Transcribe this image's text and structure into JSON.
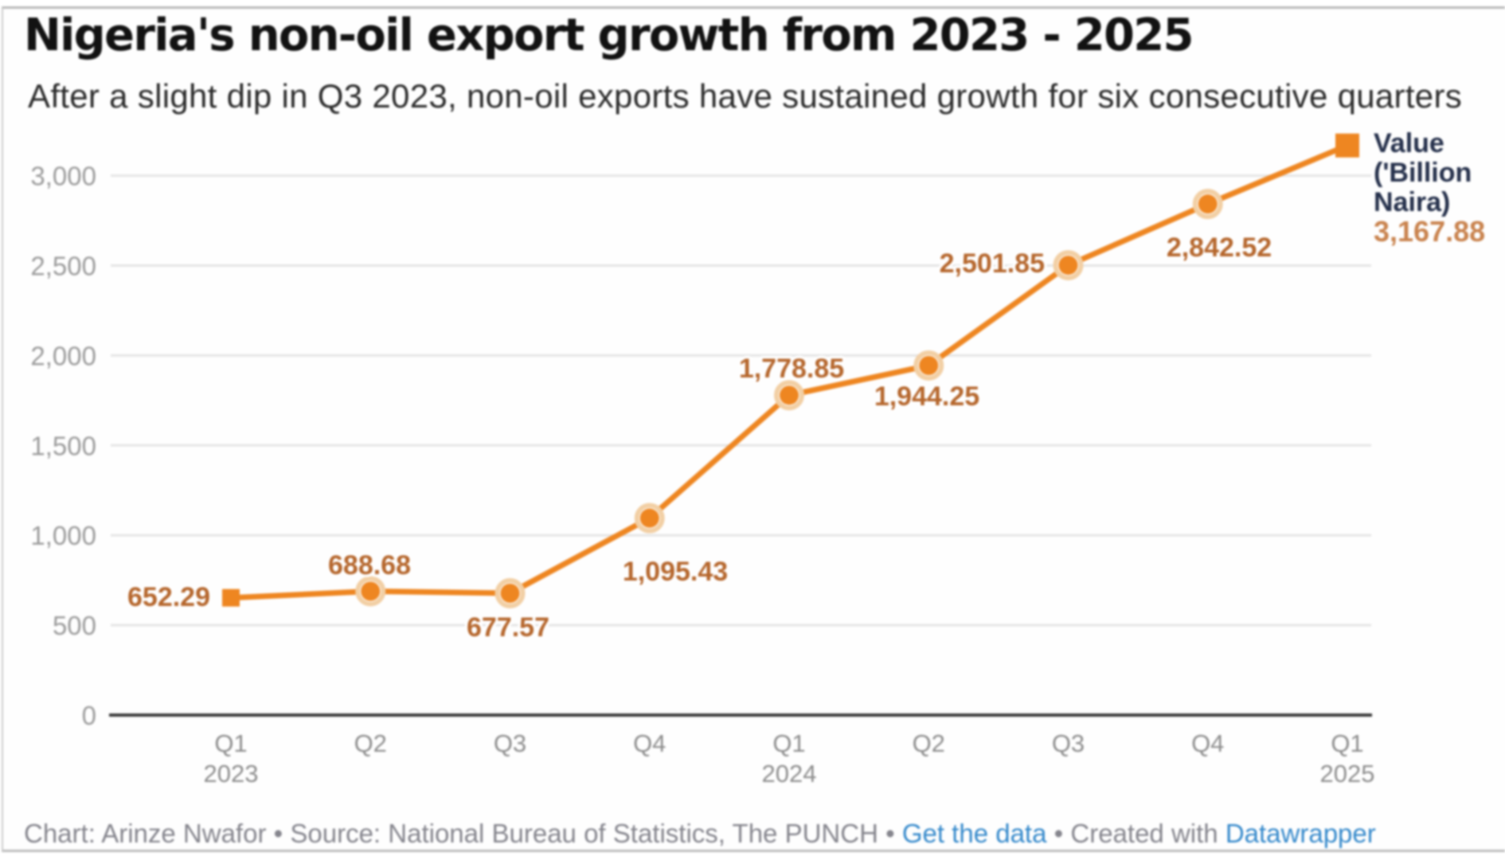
{
  "header": {
    "title": "Nigeria's non-oil export growth from 2023 - 2025",
    "subtitle": "After a slight dip in Q3 2023, non-oil exports have sustained growth for six consecutive quarters"
  },
  "legend": {
    "label": "Value ('Billion Naira)",
    "value": "3,167.88"
  },
  "footer": {
    "credit": "Chart: Arinze Nwafor",
    "separator": "•",
    "source": "Source: National Bureau of Statistics, The PUNCH",
    "get_data_link": "Get the data",
    "created_with": "Created with",
    "tool_link": "Datawrapper"
  },
  "chart_data": {
    "type": "line",
    "title": "Nigeria's non-oil export growth from 2023 - 2025",
    "subtitle": "After a slight dip in Q3 2023, non-oil exports have sustained growth for six consecutive quarters",
    "xlabel": "",
    "ylabel": "Value ('Billion Naira)",
    "x": [
      "Q1 2023",
      "Q2 2023",
      "Q3 2023",
      "Q4 2023",
      "Q1 2024",
      "Q2 2024",
      "Q3 2024",
      "Q4 2024",
      "Q1 2025"
    ],
    "x_tick_labels": [
      {
        "quarter": "Q1",
        "year": "2023"
      },
      {
        "quarter": "Q2",
        "year": ""
      },
      {
        "quarter": "Q3",
        "year": ""
      },
      {
        "quarter": "Q4",
        "year": ""
      },
      {
        "quarter": "Q1",
        "year": "2024"
      },
      {
        "quarter": "Q2",
        "year": ""
      },
      {
        "quarter": "Q3",
        "year": ""
      },
      {
        "quarter": "Q4",
        "year": ""
      },
      {
        "quarter": "Q1",
        "year": "2025"
      }
    ],
    "series": [
      {
        "name": "Value ('Billion Naira)",
        "values": [
          652.29,
          688.68,
          677.57,
          1095.43,
          1778.85,
          1944.25,
          2501.85,
          2842.52,
          3167.88
        ],
        "labels": [
          "652.29",
          "688.68",
          "677.57",
          "1,095.43",
          "1,778.85",
          "1,944.25",
          "2,501.85",
          "2,842.52",
          "3,167.88"
        ]
      }
    ],
    "y_ticks": [
      {
        "value": 0,
        "label": "0"
      },
      {
        "value": 500,
        "label": "500"
      },
      {
        "value": 1000,
        "label": "1,000"
      },
      {
        "value": 1500,
        "label": "1,500"
      },
      {
        "value": 2000,
        "label": "2,000"
      },
      {
        "value": 2500,
        "label": "2,500"
      },
      {
        "value": 3000,
        "label": "3,000"
      }
    ],
    "ylim": [
      0,
      3250
    ],
    "grid": "horizontal",
    "legend_position": "right",
    "colors": {
      "line": "#ee8621",
      "marker_ring": "#f2cfa4",
      "data_label": "#b5662c",
      "grid_line": "#e5e5e5",
      "axis_line": "#3a3a3a",
      "tick_label": "#9b9b9b",
      "x_tick_label": "#8d8d8d"
    }
  }
}
